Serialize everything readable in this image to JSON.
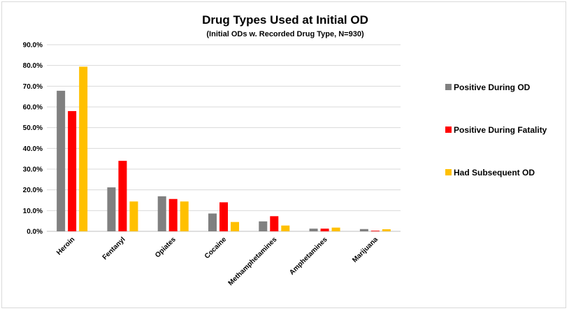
{
  "chart_data": {
    "type": "bar",
    "title": "Drug Types Used at Initial OD",
    "subtitle": "(Initial ODs w. Recorded Drug Type, N=930)",
    "categories": [
      "Heroin",
      "Fentanyl",
      "Opiates",
      "Cocaine",
      "Methamphetamines",
      "Amphetamines",
      "Marijuana"
    ],
    "series": [
      {
        "name": "Positive During OD",
        "color": "#808080",
        "values": [
          67.8,
          21.2,
          16.9,
          8.6,
          4.8,
          1.3,
          1.1
        ]
      },
      {
        "name": "Positive During Fatality",
        "color": "#ff0000",
        "values": [
          58.0,
          34.0,
          15.6,
          14.0,
          7.3,
          1.3,
          0.3
        ]
      },
      {
        "name": "Had Subsequent OD",
        "color": "#ffc000",
        "values": [
          79.4,
          14.4,
          14.4,
          4.5,
          2.8,
          1.8,
          1.0
        ]
      }
    ],
    "yticks": [
      "0.0%",
      "10.0%",
      "20.0%",
      "30.0%",
      "40.0%",
      "50.0%",
      "60.0%",
      "70.0%",
      "80.0%",
      "90.0%"
    ],
    "ylim": [
      0,
      90
    ],
    "grid": true,
    "legend_position": "right"
  }
}
